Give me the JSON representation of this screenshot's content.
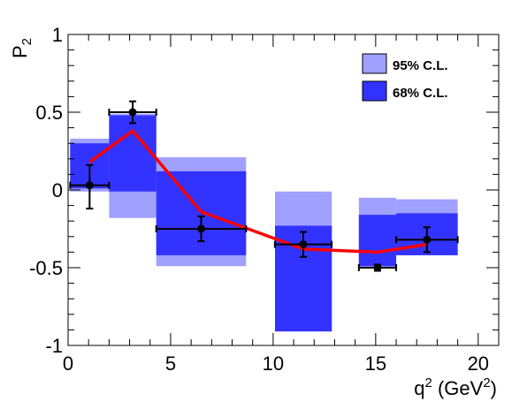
{
  "chart_data": {
    "type": "bar",
    "xlabel": "q",
    "xlabel_sup": "2",
    "xlabel_unit_open": " (GeV",
    "xlabel_unit_sup": "2",
    "xlabel_unit_close": ")",
    "ylabel": "P",
    "ylabel_sub": "2",
    "xlim": [
      0,
      21
    ],
    "ylim": [
      -1,
      1
    ],
    "x_ticks": [
      0,
      5,
      10,
      15,
      20
    ],
    "x_tick_labels": [
      "0",
      "5",
      "10",
      "15",
      "20"
    ],
    "y_ticks": [
      -1,
      -0.5,
      0,
      0.5,
      1
    ],
    "y_tick_labels": [
      "-1",
      "-0.5",
      "0",
      "0.5",
      "1"
    ],
    "legend_position": "top-right",
    "bands": [
      {
        "x_min": 0.1,
        "x_max": 2.0,
        "cl95": [
          -0.01,
          0.33
        ],
        "cl68": [
          0.01,
          0.3
        ]
      },
      {
        "x_min": 2.0,
        "x_max": 4.3,
        "cl95": [
          -0.18,
          0.49
        ],
        "cl68": [
          -0.01,
          0.48
        ]
      },
      {
        "x_min": 4.3,
        "x_max": 8.68,
        "cl95": [
          -0.49,
          0.21
        ],
        "cl68": [
          -0.42,
          0.12
        ]
      },
      {
        "x_min": 10.09,
        "x_max": 12.86,
        "cl95": [
          -0.91,
          -0.01
        ],
        "cl68": [
          -0.91,
          -0.23
        ]
      },
      {
        "x_min": 14.18,
        "x_max": 16.0,
        "cl95": [
          -0.5,
          -0.05
        ],
        "cl68": [
          -0.49,
          -0.16
        ]
      },
      {
        "x_min": 16.0,
        "x_max": 19.0,
        "cl95": [
          -0.42,
          -0.06
        ],
        "cl68": [
          -0.42,
          -0.15
        ]
      }
    ],
    "series": [
      {
        "name": "95% C.L.",
        "color": "#a0a0ff"
      },
      {
        "name": "68% C.L.",
        "color": "#3333ff"
      },
      {
        "type": "scatter",
        "color": "#000000",
        "points": [
          {
            "x": 1.05,
            "y": 0.03,
            "x_err": [
              0.95,
              0.95
            ],
            "y_err": [
              0.15,
              0.13
            ]
          },
          {
            "x": 3.15,
            "y": 0.5,
            "x_err": [
              1.15,
              1.15
            ],
            "y_err": [
              0.07,
              0.07
            ]
          },
          {
            "x": 6.49,
            "y": -0.25,
            "x_err": [
              2.19,
              2.19
            ],
            "y_err": [
              0.08,
              0.08
            ]
          },
          {
            "x": 11.47,
            "y": -0.35,
            "x_err": [
              1.385,
              1.385
            ],
            "y_err": [
              0.08,
              0.08
            ]
          },
          {
            "x": 15.09,
            "y": -0.5,
            "x_err": [
              0.91,
              0.91
            ],
            "y_err": [
              0.02,
              0.02
            ]
          },
          {
            "x": 17.5,
            "y": -0.32,
            "x_err": [
              1.5,
              1.5
            ],
            "y_err": [
              0.08,
              0.08
            ]
          }
        ]
      },
      {
        "type": "line",
        "color": "#ff0000",
        "x": [
          1.05,
          3.15,
          6.49,
          11.47,
          15.09,
          17.5
        ],
        "y": [
          0.18,
          0.38,
          -0.14,
          -0.38,
          -0.4,
          -0.35
        ]
      }
    ]
  }
}
